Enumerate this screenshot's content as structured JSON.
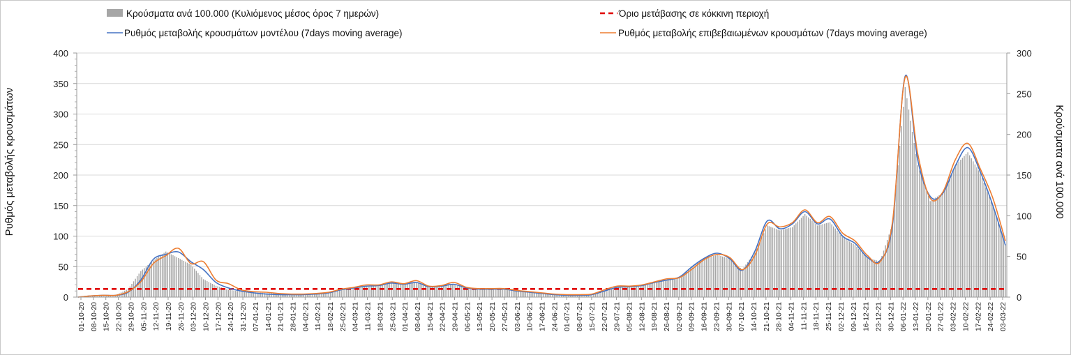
{
  "chart_data": {
    "type": "bar",
    "yleft_label": "Ρυθμός μεταβολής κρουσμάτων",
    "yright_label": "Κρούσματα ανά 100.000",
    "yleft_lim": [
      0,
      400
    ],
    "yright_lim": [
      0,
      300
    ],
    "yleft_ticks": [
      "0",
      "50",
      "100",
      "150",
      "200",
      "250",
      "300",
      "350",
      "400"
    ],
    "yright_ticks": [
      "0",
      "50",
      "100",
      "150",
      "200",
      "250",
      "300"
    ],
    "x_start": "2020-10-01",
    "x_end": "2022-03-03",
    "date_labels": [
      "01-10-20",
      "08-10-20",
      "15-10-20",
      "22-10-20",
      "29-10-20",
      "05-11-20",
      "12-11-20",
      "19-11-20",
      "26-11-20",
      "03-12-20",
      "10-12-20",
      "17-12-20",
      "24-12-20",
      "31-12-20",
      "07-01-21",
      "14-01-21",
      "21-01-21",
      "28-01-21",
      "04-02-21",
      "11-02-21",
      "18-02-21",
      "25-02-21",
      "04-03-21",
      "11-03-21",
      "18-03-21",
      "25-03-21",
      "01-04-21",
      "08-04-21",
      "15-04-21",
      "22-04-21",
      "29-04-21",
      "06-05-21",
      "13-05-21",
      "20-05-21",
      "27-05-21",
      "03-06-21",
      "10-06-21",
      "17-06-21",
      "24-06-21",
      "01-07-21",
      "08-07-21",
      "15-07-21",
      "22-07-21",
      "29-07-21",
      "05-08-21",
      "12-08-21",
      "19-08-21",
      "26-08-21",
      "02-09-21",
      "09-09-21",
      "16-09-21",
      "23-09-21",
      "30-09-21",
      "07-10-21",
      "14-10-21",
      "21-10-21",
      "28-10-21",
      "04-11-21",
      "11-11-21",
      "18-11-21",
      "25-11-21",
      "02-12-21",
      "09-12-21",
      "16-12-21",
      "23-12-21",
      "30-12-21",
      "06-01-22",
      "13-01-22",
      "20-01-22",
      "27-01-22",
      "03-02-22",
      "10-02-22",
      "17-02-22",
      "24-02-22",
      "03-03-22"
    ],
    "legend": {
      "bars": "Κρούσματα ανά 100.000 (Κυλιόμενος μέσος όρος 7 ημερών)",
      "threshold": "Όριο μετάβασης σε κόκκινη περιοχή",
      "model": "Ρυθμός μεταβολής κρουσμάτων μοντέλου (7days moving average)",
      "confirmed": "Ρυθμός μεταβολής επιβεβαιωμένων κρουσμάτων (7days moving average)"
    },
    "colors": {
      "bars": "#a6a6a6",
      "threshold": "#e00000",
      "model": "#4472c4",
      "confirmed": "#ed7d31"
    },
    "threshold_right_value": 10,
    "series": [
      {
        "key": "bars",
        "axis": "right",
        "points": [
          [
            "2020-10-01",
            0.5
          ],
          [
            "2020-10-08",
            1.5
          ],
          [
            "2020-10-15",
            2
          ],
          [
            "2020-10-22",
            2.5
          ],
          [
            "2020-10-29",
            10
          ],
          [
            "2020-11-05",
            32
          ],
          [
            "2020-11-12",
            45
          ],
          [
            "2020-11-19",
            56
          ],
          [
            "2020-11-26",
            48
          ],
          [
            "2020-12-03",
            40
          ],
          [
            "2020-12-10",
            22
          ],
          [
            "2020-12-17",
            14
          ],
          [
            "2020-12-24",
            9
          ],
          [
            "2020-12-31",
            7
          ],
          [
            "2021-01-07",
            6
          ],
          [
            "2021-01-14",
            5
          ],
          [
            "2021-01-21",
            4.5
          ],
          [
            "2021-01-28",
            3.5
          ],
          [
            "2021-02-04",
            3.5
          ],
          [
            "2021-02-11",
            4
          ],
          [
            "2021-02-18",
            6
          ],
          [
            "2021-02-25",
            10
          ],
          [
            "2021-03-04",
            12
          ],
          [
            "2021-03-11",
            14
          ],
          [
            "2021-03-18",
            15
          ],
          [
            "2021-03-25",
            18
          ],
          [
            "2021-04-01",
            16
          ],
          [
            "2021-04-08",
            18
          ],
          [
            "2021-04-15",
            13
          ],
          [
            "2021-04-22",
            13
          ],
          [
            "2021-04-29",
            16
          ],
          [
            "2021-05-06",
            11
          ],
          [
            "2021-05-13",
            10
          ],
          [
            "2021-05-20",
            10
          ],
          [
            "2021-05-27",
            10
          ],
          [
            "2021-06-03",
            8
          ],
          [
            "2021-06-10",
            6
          ],
          [
            "2021-06-17",
            4.5
          ],
          [
            "2021-06-24",
            3
          ],
          [
            "2021-07-01",
            2.5
          ],
          [
            "2021-07-08",
            2.5
          ],
          [
            "2021-07-15",
            3
          ],
          [
            "2021-07-22",
            8
          ],
          [
            "2021-07-29",
            12
          ],
          [
            "2021-08-05",
            13
          ],
          [
            "2021-08-12",
            14
          ],
          [
            "2021-08-19",
            18
          ],
          [
            "2021-08-26",
            21
          ],
          [
            "2021-09-02",
            25
          ],
          [
            "2021-09-09",
            38
          ],
          [
            "2021-09-16",
            47
          ],
          [
            "2021-09-23",
            52
          ],
          [
            "2021-09-30",
            47
          ],
          [
            "2021-10-07",
            34
          ],
          [
            "2021-10-14",
            55
          ],
          [
            "2021-10-21",
            88
          ],
          [
            "2021-10-28",
            82
          ],
          [
            "2021-11-04",
            86
          ],
          [
            "2021-11-11",
            102
          ],
          [
            "2021-11-18",
            88
          ],
          [
            "2021-11-25",
            92
          ],
          [
            "2021-12-02",
            74
          ],
          [
            "2021-12-09",
            64
          ],
          [
            "2021-12-16",
            48
          ],
          [
            "2021-12-23",
            44
          ],
          [
            "2021-12-30",
            90
          ],
          [
            "2022-01-06",
            258
          ],
          [
            "2022-01-13",
            162
          ],
          [
            "2022-01-20",
            118
          ],
          [
            "2022-01-27",
            128
          ],
          [
            "2022-02-03",
            162
          ],
          [
            "2022-02-10",
            178
          ],
          [
            "2022-02-17",
            152
          ],
          [
            "2022-02-24",
            112
          ],
          [
            "2022-03-03",
            65
          ]
        ]
      },
      {
        "key": "model",
        "axis": "left",
        "points": [
          [
            "2020-10-01",
            0
          ],
          [
            "2020-10-08",
            2
          ],
          [
            "2020-10-15",
            3
          ],
          [
            "2020-10-22",
            3
          ],
          [
            "2020-10-29",
            8
          ],
          [
            "2020-11-05",
            28
          ],
          [
            "2020-11-12",
            62
          ],
          [
            "2020-11-19",
            70
          ],
          [
            "2020-11-26",
            74
          ],
          [
            "2020-12-03",
            58
          ],
          [
            "2020-12-10",
            45
          ],
          [
            "2020-12-17",
            24
          ],
          [
            "2020-12-24",
            15
          ],
          [
            "2020-12-31",
            10
          ],
          [
            "2021-01-07",
            7
          ],
          [
            "2021-01-14",
            5
          ],
          [
            "2021-01-21",
            4
          ],
          [
            "2021-01-28",
            4
          ],
          [
            "2021-02-04",
            4
          ],
          [
            "2021-02-11",
            5
          ],
          [
            "2021-02-18",
            7
          ],
          [
            "2021-02-25",
            12
          ],
          [
            "2021-03-04",
            15
          ],
          [
            "2021-03-11",
            18
          ],
          [
            "2021-03-18",
            19
          ],
          [
            "2021-03-25",
            23
          ],
          [
            "2021-04-01",
            21
          ],
          [
            "2021-04-08",
            24
          ],
          [
            "2021-04-15",
            17
          ],
          [
            "2021-04-22",
            18
          ],
          [
            "2021-04-29",
            21
          ],
          [
            "2021-05-06",
            15
          ],
          [
            "2021-05-13",
            13
          ],
          [
            "2021-05-20",
            13
          ],
          [
            "2021-05-27",
            13
          ],
          [
            "2021-06-03",
            10
          ],
          [
            "2021-06-10",
            8
          ],
          [
            "2021-06-17",
            6
          ],
          [
            "2021-06-24",
            4
          ],
          [
            "2021-07-01",
            3
          ],
          [
            "2021-07-08",
            3
          ],
          [
            "2021-07-15",
            4
          ],
          [
            "2021-07-22",
            10
          ],
          [
            "2021-07-29",
            16
          ],
          [
            "2021-08-05",
            17
          ],
          [
            "2021-08-12",
            19
          ],
          [
            "2021-08-19",
            24
          ],
          [
            "2021-08-26",
            28
          ],
          [
            "2021-09-02",
            33
          ],
          [
            "2021-09-09",
            50
          ],
          [
            "2021-09-16",
            64
          ],
          [
            "2021-09-23",
            72
          ],
          [
            "2021-09-30",
            63
          ],
          [
            "2021-10-07",
            44
          ],
          [
            "2021-10-14",
            75
          ],
          [
            "2021-10-21",
            125
          ],
          [
            "2021-10-28",
            112
          ],
          [
            "2021-11-04",
            120
          ],
          [
            "2021-11-11",
            140
          ],
          [
            "2021-11-18",
            120
          ],
          [
            "2021-11-25",
            128
          ],
          [
            "2021-12-02",
            100
          ],
          [
            "2021-12-09",
            88
          ],
          [
            "2021-12-16",
            65
          ],
          [
            "2021-12-23",
            60
          ],
          [
            "2021-12-30",
            120
          ],
          [
            "2022-01-06",
            362
          ],
          [
            "2022-01-13",
            225
          ],
          [
            "2022-01-20",
            165
          ],
          [
            "2022-01-27",
            170
          ],
          [
            "2022-02-03",
            215
          ],
          [
            "2022-02-10",
            245
          ],
          [
            "2022-02-17",
            205
          ],
          [
            "2022-02-24",
            150
          ],
          [
            "2022-03-03",
            85
          ]
        ]
      },
      {
        "key": "confirmed",
        "axis": "left",
        "points": [
          [
            "2020-10-01",
            0
          ],
          [
            "2020-10-08",
            2
          ],
          [
            "2020-10-15",
            3
          ],
          [
            "2020-10-22",
            3
          ],
          [
            "2020-10-29",
            9
          ],
          [
            "2020-11-05",
            25
          ],
          [
            "2020-11-12",
            55
          ],
          [
            "2020-11-19",
            68
          ],
          [
            "2020-11-26",
            80
          ],
          [
            "2020-12-03",
            55
          ],
          [
            "2020-12-10",
            58
          ],
          [
            "2020-12-17",
            28
          ],
          [
            "2020-12-24",
            22
          ],
          [
            "2020-12-31",
            12
          ],
          [
            "2021-01-07",
            9
          ],
          [
            "2021-01-14",
            8
          ],
          [
            "2021-01-21",
            6
          ],
          [
            "2021-01-28",
            5
          ],
          [
            "2021-02-04",
            5
          ],
          [
            "2021-02-11",
            6
          ],
          [
            "2021-02-18",
            8
          ],
          [
            "2021-02-25",
            13
          ],
          [
            "2021-03-04",
            16
          ],
          [
            "2021-03-11",
            20
          ],
          [
            "2021-03-18",
            20
          ],
          [
            "2021-03-25",
            25
          ],
          [
            "2021-04-01",
            22
          ],
          [
            "2021-04-08",
            27
          ],
          [
            "2021-04-15",
            18
          ],
          [
            "2021-04-22",
            19
          ],
          [
            "2021-04-29",
            24
          ],
          [
            "2021-05-06",
            16
          ],
          [
            "2021-05-13",
            14
          ],
          [
            "2021-05-20",
            14
          ],
          [
            "2021-05-27",
            14
          ],
          [
            "2021-06-03",
            11
          ],
          [
            "2021-06-10",
            9
          ],
          [
            "2021-06-17",
            7
          ],
          [
            "2021-06-24",
            5
          ],
          [
            "2021-07-01",
            4
          ],
          [
            "2021-07-08",
            4
          ],
          [
            "2021-07-15",
            5
          ],
          [
            "2021-07-22",
            12
          ],
          [
            "2021-07-29",
            18
          ],
          [
            "2021-08-05",
            18
          ],
          [
            "2021-08-12",
            20
          ],
          [
            "2021-08-19",
            25
          ],
          [
            "2021-08-26",
            30
          ],
          [
            "2021-09-02",
            32
          ],
          [
            "2021-09-09",
            46
          ],
          [
            "2021-09-16",
            62
          ],
          [
            "2021-09-23",
            70
          ],
          [
            "2021-09-30",
            65
          ],
          [
            "2021-10-07",
            45
          ],
          [
            "2021-10-14",
            68
          ],
          [
            "2021-10-21",
            120
          ],
          [
            "2021-10-28",
            115
          ],
          [
            "2021-11-04",
            122
          ],
          [
            "2021-11-11",
            143
          ],
          [
            "2021-11-18",
            122
          ],
          [
            "2021-11-25",
            132
          ],
          [
            "2021-12-02",
            105
          ],
          [
            "2021-12-09",
            92
          ],
          [
            "2021-12-16",
            68
          ],
          [
            "2021-12-23",
            58
          ],
          [
            "2021-12-30",
            125
          ],
          [
            "2022-01-06",
            360
          ],
          [
            "2022-01-13",
            235
          ],
          [
            "2022-01-20",
            162
          ],
          [
            "2022-01-27",
            172
          ],
          [
            "2022-02-03",
            225
          ],
          [
            "2022-02-10",
            252
          ],
          [
            "2022-02-17",
            210
          ],
          [
            "2022-02-24",
            162
          ],
          [
            "2022-03-03",
            92
          ]
        ]
      }
    ]
  }
}
